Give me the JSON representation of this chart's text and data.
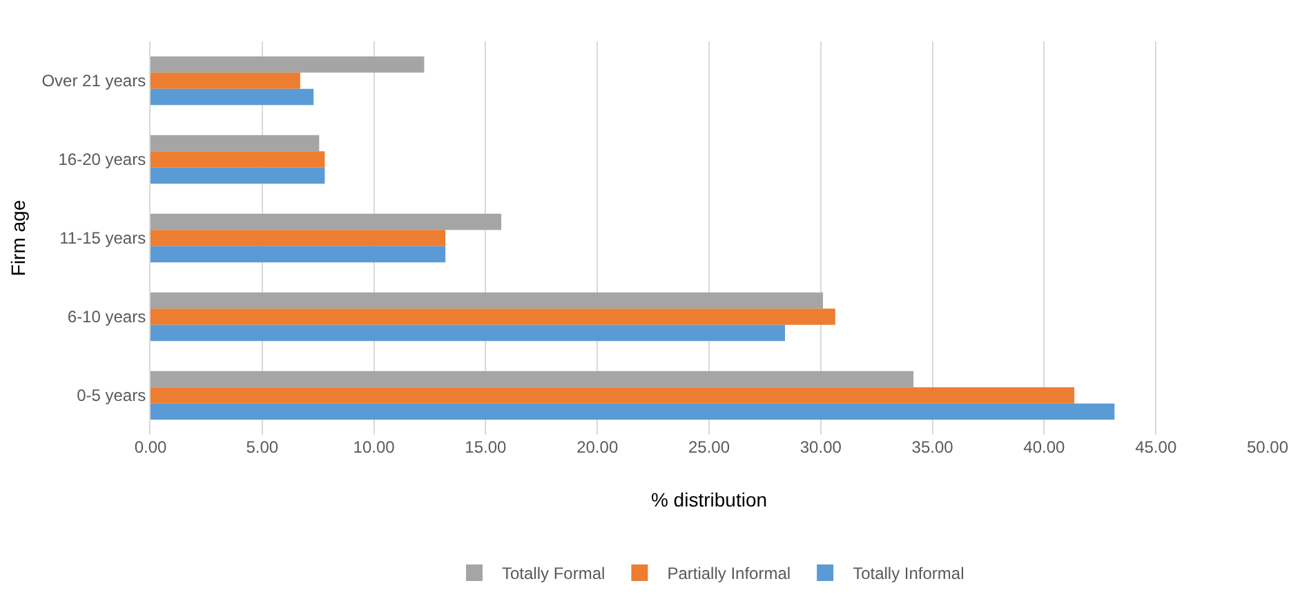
{
  "chart_data": {
    "type": "bar",
    "orientation": "horizontal",
    "xlabel": "% distribution",
    "ylabel": "Firm age",
    "categories": [
      "Over 21 years",
      "16-20 years",
      "11-15 years",
      "6-10 years",
      "0-5 years"
    ],
    "series": [
      {
        "name": "Totally Formal",
        "color": "#a5a5a5",
        "values": [
          12.25,
          7.55,
          15.7,
          30.1,
          34.15
        ]
      },
      {
        "name": "Partially Informal",
        "color": "#ed7d31",
        "values": [
          6.7,
          7.8,
          13.2,
          30.65,
          41.35
        ]
      },
      {
        "name": "Totally Informal",
        "color": "#5b9bd5",
        "values": [
          7.3,
          7.8,
          13.2,
          28.4,
          43.15
        ]
      }
    ],
    "xlim": [
      0,
      50
    ],
    "xticks": [
      {
        "value": 0,
        "label": "0.00"
      },
      {
        "value": 5,
        "label": "5.00"
      },
      {
        "value": 10,
        "label": "10.00"
      },
      {
        "value": 15,
        "label": "15.00"
      },
      {
        "value": 20,
        "label": "20.00"
      },
      {
        "value": 25,
        "label": "25.00"
      },
      {
        "value": 30,
        "label": "30.00"
      },
      {
        "value": 35,
        "label": "35.00"
      },
      {
        "value": 40,
        "label": "40.00"
      },
      {
        "value": 45,
        "label": "45.00"
      },
      {
        "value": 50,
        "label": "50.00"
      }
    ],
    "grid": "x",
    "legend": "bottom"
  }
}
